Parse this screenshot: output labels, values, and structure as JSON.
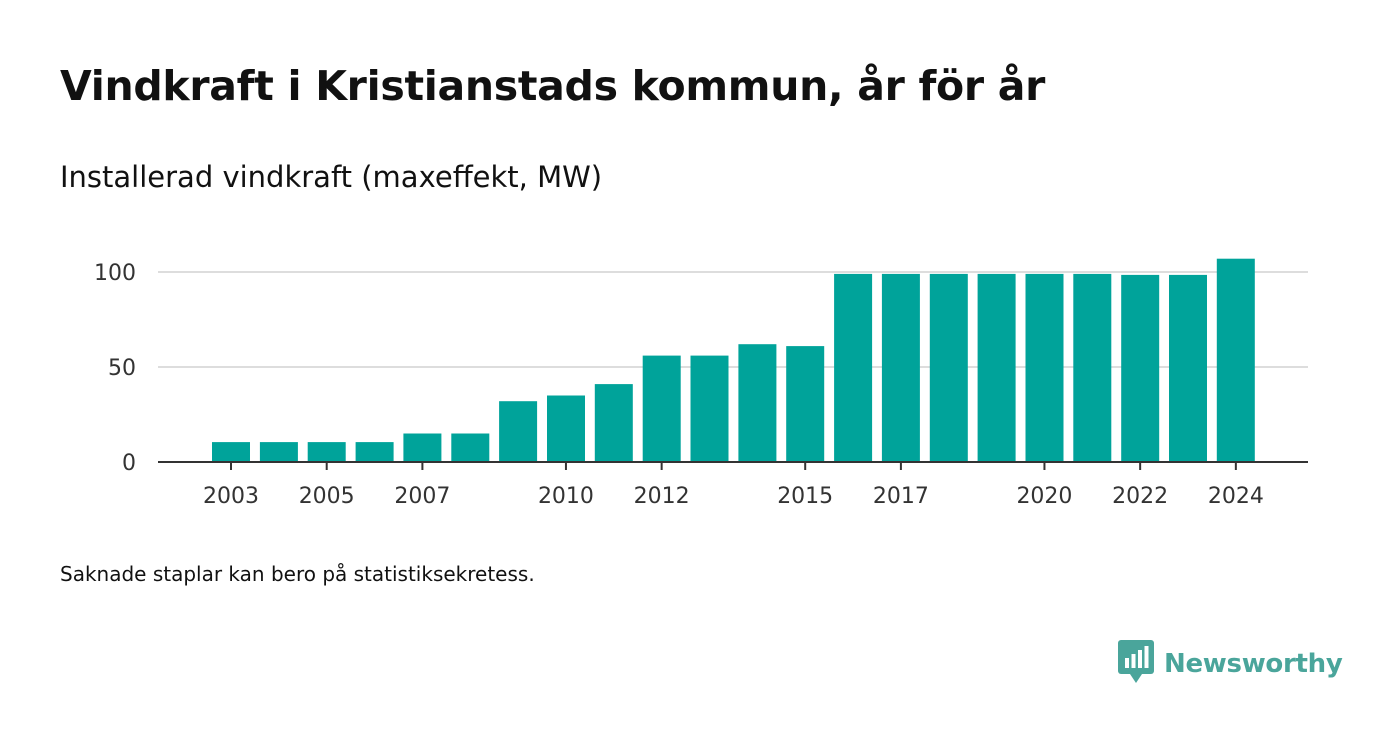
{
  "title": "Vindkraft i Kristianstads kommun, år för år",
  "subtitle": "Installerad vindkraft (maxeffekt, MW)",
  "note": "Saknade staplar kan bero på statistiksekretess.",
  "brand": {
    "name": "Newsworthy",
    "icon": "newsworthy-logo-icon",
    "color": "#4aa59b"
  },
  "chart_data": {
    "type": "bar",
    "categories": [
      "2003",
      "2004",
      "2005",
      "2006",
      "2007",
      "2008",
      "2009",
      "2010",
      "2011",
      "2012",
      "2013",
      "2014",
      "2015",
      "2016",
      "2017",
      "2018",
      "2019",
      "2020",
      "2021",
      "2022",
      "2023",
      "2024"
    ],
    "values": [
      10.5,
      10.5,
      10.5,
      10.5,
      15,
      15,
      32,
      35,
      41,
      56,
      56,
      62,
      61,
      99,
      99,
      99,
      99,
      99,
      99,
      98.5,
      98.5,
      107
    ],
    "xtick_labels": [
      "2003",
      "2005",
      "2007",
      "2010",
      "2012",
      "2015",
      "2017",
      "2020",
      "2022",
      "2024"
    ],
    "yticks": [
      "0",
      "50",
      "100"
    ],
    "ylim": [
      0,
      110
    ],
    "bar_color": "#00a39a",
    "grid": true,
    "xlabel": "",
    "ylabel": ""
  }
}
